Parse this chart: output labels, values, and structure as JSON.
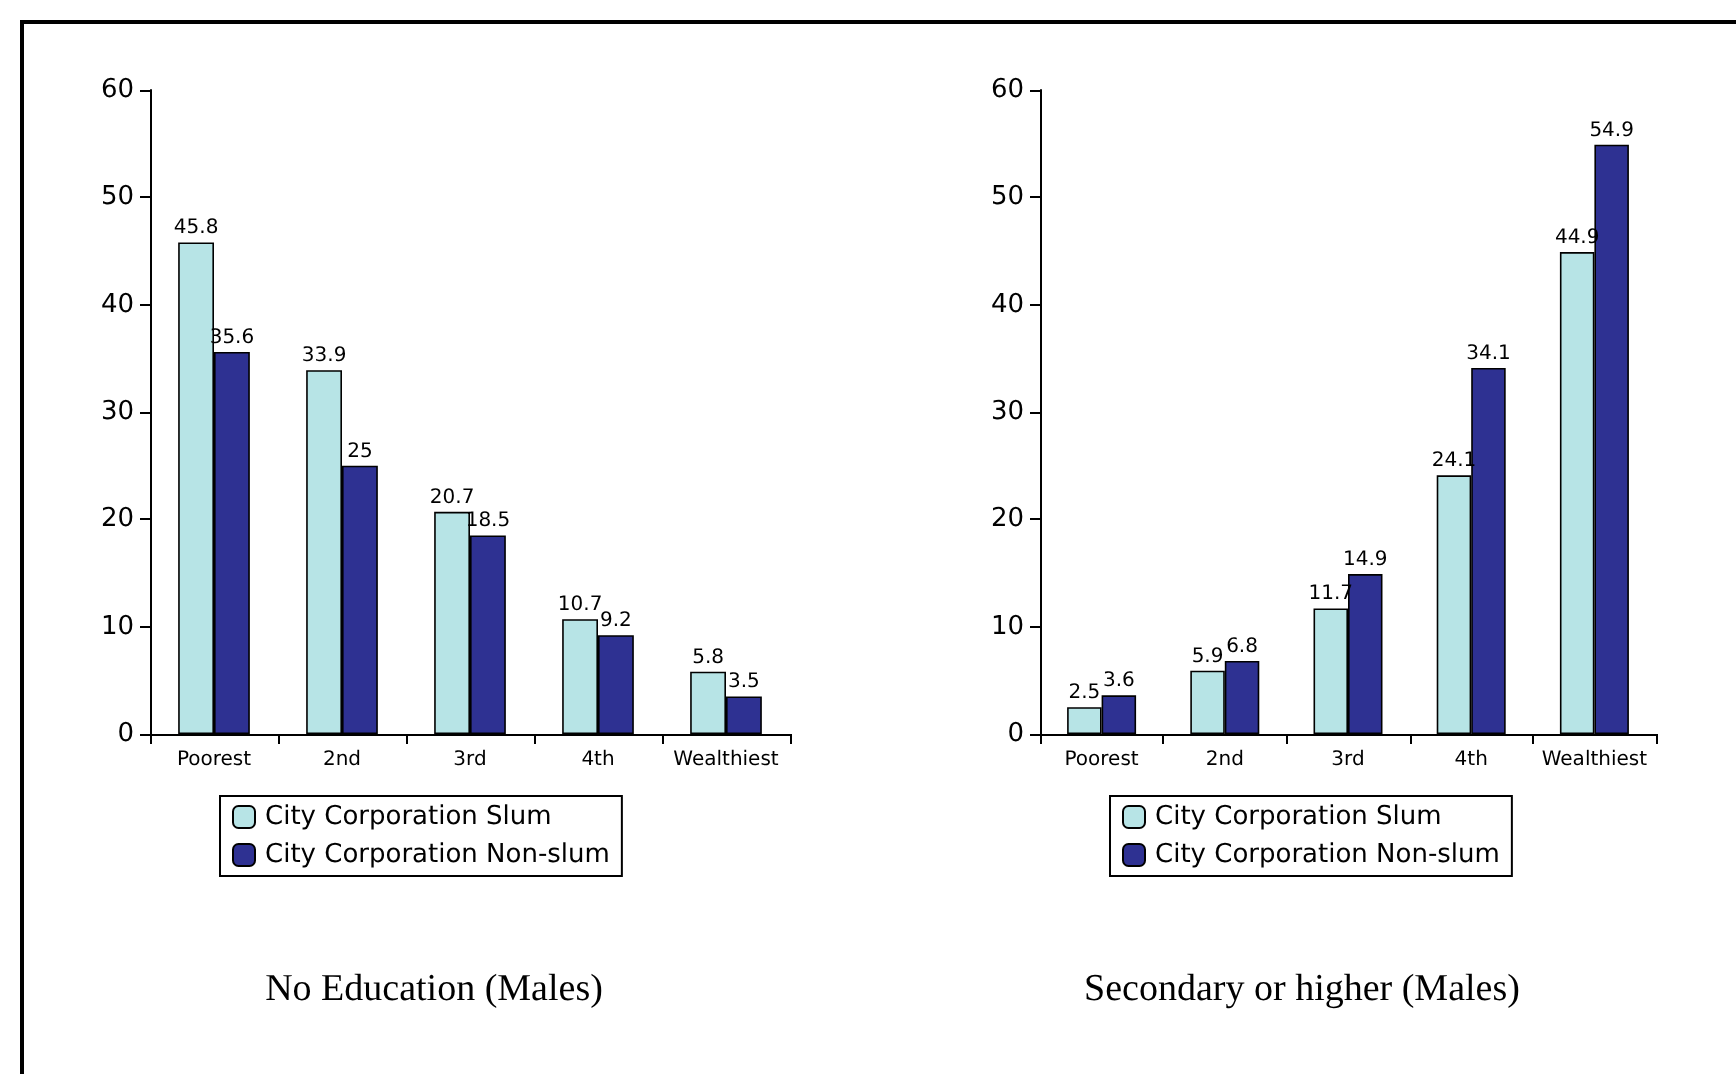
{
  "chart_data": [
    {
      "type": "bar",
      "title": "No Education (Males)",
      "categories": [
        "Poorest",
        "2nd",
        "3rd",
        "4th",
        "Wealthiest"
      ],
      "series": [
        {
          "name": "City Corporation Slum",
          "color": "#b7e4e6",
          "values": [
            45.8,
            33.9,
            20.7,
            10.7,
            5.8
          ]
        },
        {
          "name": "City Corporation Non-slum",
          "color": "#2e3192",
          "values": [
            35.6,
            25,
            18.5,
            9.2,
            3.5
          ]
        }
      ],
      "ylim": [
        0,
        60
      ],
      "yticks": [
        0,
        10,
        20,
        30,
        40,
        50,
        60
      ],
      "data_labels": true,
      "legend": "bottom",
      "grid": false
    },
    {
      "type": "bar",
      "title": "Secondary or higher (Males)",
      "categories": [
        "Poorest",
        "2nd",
        "3rd",
        "4th",
        "Wealthiest"
      ],
      "series": [
        {
          "name": "City Corporation Slum",
          "color": "#b7e4e6",
          "values": [
            2.5,
            5.9,
            11.7,
            24.1,
            44.9
          ]
        },
        {
          "name": "City Corporation Non-slum",
          "color": "#2e3192",
          "values": [
            3.6,
            6.8,
            14.9,
            34.1,
            54.9
          ]
        }
      ],
      "ylim": [
        0,
        60
      ],
      "yticks": [
        0,
        10,
        20,
        30,
        40,
        50,
        60
      ],
      "data_labels": true,
      "legend": "bottom",
      "grid": false
    }
  ]
}
